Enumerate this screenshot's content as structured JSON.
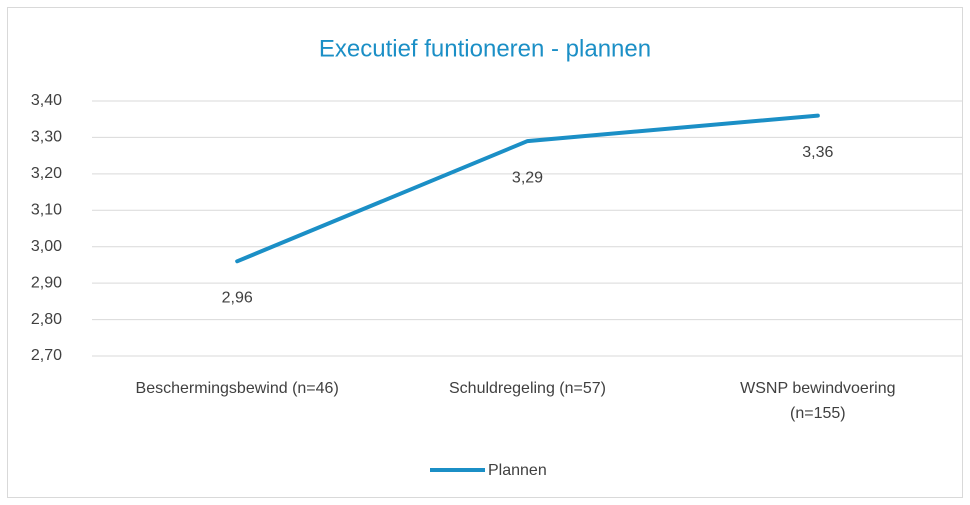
{
  "chart_data": {
    "type": "line",
    "title": "Executief funtioneren - plannen",
    "categories": [
      "Beschermingsbewind (n=46)",
      "Schuldregeling (n=57)",
      "WSNP bewindvoering (n=155)"
    ],
    "series": [
      {
        "name": "Plannen",
        "color": "#1b8fc6",
        "values": [
          2.96,
          3.29,
          3.36
        ],
        "value_labels": [
          "2,96",
          "3,29",
          "3,36"
        ]
      }
    ],
    "ylim": [
      2.7,
      3.4
    ],
    "yticks": [
      {
        "value": 2.7,
        "label": "2,70"
      },
      {
        "value": 2.8,
        "label": "2,80"
      },
      {
        "value": 2.9,
        "label": "2,90"
      },
      {
        "value": 3.0,
        "label": "3,00"
      },
      {
        "value": 3.1,
        "label": "3,10"
      },
      {
        "value": 3.2,
        "label": "3,20"
      },
      {
        "value": 3.3,
        "label": "3,30"
      },
      {
        "value": 3.4,
        "label": "3,40"
      }
    ],
    "title_color": "#1b8fc6",
    "grid": true,
    "legend": "bottom"
  }
}
